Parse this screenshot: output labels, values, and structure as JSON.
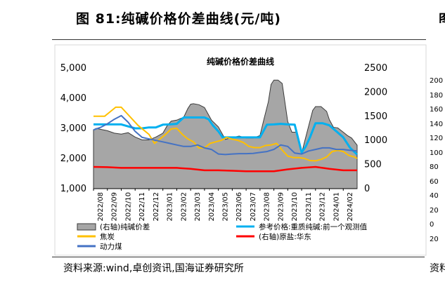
{
  "figure": {
    "title": "图 81:纯碱价格价差曲线(元/吨)",
    "source": "资料来源:wind,卓创资讯,国海证券研究所",
    "right_panel_title_fragment": "图",
    "right_panel_source_fragment": "资料",
    "right_panel_ticks": [
      "200",
      "180",
      "160",
      "140",
      "120",
      "100",
      "80",
      "60",
      "40",
      "20",
      "0",
      "20"
    ]
  },
  "chart_data": {
    "type": "line",
    "title": "纯碱价格价差曲线",
    "categories": [
      "2022/08",
      "2022/09",
      "2022/10",
      "2022/11",
      "2022/12",
      "2023/01",
      "2023/02",
      "2023/03",
      "2023/04",
      "2023/05",
      "2023/06",
      "2023/07",
      "2023/08",
      "2023/09",
      "2023/10",
      "2023/11",
      "2023/12",
      "2024/01",
      "2024/02"
    ],
    "x_span": [
      0,
      19
    ],
    "left_axis": {
      "min": 1000,
      "max": 5000,
      "ticks": [
        "1,000",
        "2,000",
        "3,000",
        "4,000",
        "5,000"
      ]
    },
    "right_axis": {
      "min": 0,
      "max": 2500,
      "ticks": [
        "0",
        "500",
        "1000",
        "1500",
        "2000",
        "2500"
      ]
    },
    "series": [
      {
        "name": "(右轴)纯碱价差",
        "type": "area",
        "axis": "right",
        "color": "#a6a6a6",
        "x": [
          0,
          0.2,
          0.5,
          1,
          1.5,
          2,
          2.5,
          3,
          3.5,
          4,
          4.5,
          5,
          5.3,
          5.6,
          6,
          6.5,
          6.8,
          7,
          7.2,
          7.6,
          8,
          8.5,
          9,
          9.5,
          10,
          10.5,
          11,
          11.5,
          12,
          12.3,
          12.6,
          12.8,
          13,
          13.3,
          13.6,
          14,
          14.3,
          14.6,
          15,
          15.2,
          15.5,
          15.8,
          16,
          16.4,
          16.8,
          17,
          17.3,
          17.6,
          18,
          18.3,
          18.6,
          19
        ],
        "y": [
          1220,
          1250,
          1230,
          1200,
          1150,
          1130,
          1160,
          1070,
          1010,
          1010,
          1070,
          1150,
          1300,
          1400,
          1420,
          1480,
          1660,
          1750,
          1760,
          1740,
          1680,
          1420,
          1280,
          1020,
          1060,
          1090,
          1050,
          1050,
          1100,
          1460,
          1800,
          2160,
          2250,
          2250,
          2180,
          1390,
          1170,
          1170,
          730,
          960,
          1290,
          1620,
          1700,
          1700,
          1600,
          1430,
          1270,
          1260,
          1170,
          1100,
          1050,
          900
        ]
      },
      {
        "name": "参考价格:重质纯碱:前一个观测值",
        "type": "line",
        "axis": "left",
        "color": "#00b0f0",
        "x": [
          0,
          0.5,
          1,
          2,
          3,
          3.5,
          4,
          4.5,
          5,
          5.5,
          6,
          6.5,
          7,
          7.5,
          8,
          8.3,
          8.6,
          9,
          9.3,
          9.6,
          10,
          10.5,
          11,
          11.5,
          12,
          12.5,
          13,
          13.5,
          14,
          14.5,
          15,
          15.3,
          15.6,
          16,
          16.5,
          17,
          17.5,
          18,
          18.5,
          19
        ],
        "y": [
          3130,
          3130,
          3130,
          3130,
          3000,
          3000,
          3030,
          3030,
          3120,
          3130,
          3150,
          3360,
          3360,
          3360,
          3360,
          3300,
          3100,
          2900,
          2700,
          2700,
          2700,
          2700,
          2700,
          2700,
          2700,
          3120,
          3130,
          3150,
          3130,
          3120,
          2200,
          2400,
          2700,
          3170,
          3170,
          3100,
          2900,
          2700,
          2350,
          2130
        ]
      },
      {
        "name": "焦炭",
        "type": "line",
        "axis": "left",
        "color": "#ffc000",
        "x": [
          0,
          0.4,
          0.8,
          1.2,
          1.6,
          2,
          2.4,
          2.8,
          3.2,
          3.6,
          4,
          4.4,
          4.8,
          5.2,
          5.6,
          6,
          6.4,
          6.8,
          7.2,
          7.6,
          8,
          8.4,
          8.8,
          9.2,
          9.6,
          10,
          10.4,
          10.8,
          11.2,
          11.6,
          12,
          12.4,
          12.8,
          13.2,
          13.6,
          14,
          14.4,
          14.8,
          15.2,
          15.6,
          16,
          16.4,
          16.8,
          17.2,
          17.6,
          18,
          18.4,
          18.8,
          19
        ],
        "y": [
          3400,
          3400,
          3400,
          3550,
          3700,
          3700,
          3500,
          3300,
          3100,
          2950,
          2800,
          2500,
          2650,
          2800,
          2980,
          3000,
          2800,
          2650,
          2550,
          2350,
          2350,
          2500,
          2550,
          2600,
          2700,
          2640,
          2600,
          2530,
          2400,
          2360,
          2360,
          2430,
          2450,
          2500,
          2280,
          2080,
          2030,
          2030,
          2000,
          1930,
          1920,
          1970,
          2050,
          2230,
          2270,
          2230,
          2100,
          2050,
          2000
        ]
      },
      {
        "name": "(右轴)原盐:华东",
        "type": "line",
        "axis": "right",
        "color": "#ff0000",
        "x": [
          0,
          1,
          2,
          3,
          4,
          5,
          6,
          7,
          8,
          9,
          10,
          11,
          12,
          13,
          14,
          15,
          16,
          17,
          18,
          19
        ],
        "y": [
          450,
          445,
          430,
          430,
          430,
          430,
          430,
          410,
          380,
          380,
          370,
          360,
          360,
          360,
          400,
          430,
          450,
          410,
          380,
          380
        ]
      },
      {
        "name": "动力煤",
        "type": "line",
        "axis": "left",
        "color": "#4472c4",
        "x": [
          0,
          0.5,
          1,
          1.5,
          2,
          2.5,
          3,
          3.5,
          4,
          4.5,
          5,
          5.5,
          6,
          6.5,
          7,
          7.5,
          8,
          8.5,
          9,
          9.5,
          10,
          10.5,
          11,
          11.5,
          12,
          12.5,
          13,
          13.5,
          14,
          14.5,
          15,
          15.5,
          16,
          16.5,
          17,
          17.5,
          18,
          18.5,
          19
        ],
        "y": [
          2950,
          3030,
          3150,
          3300,
          3420,
          3200,
          2900,
          2700,
          2650,
          2600,
          2550,
          2500,
          2450,
          2400,
          2400,
          2450,
          2350,
          2300,
          2150,
          2130,
          2150,
          2160,
          2160,
          2170,
          2200,
          2230,
          2300,
          2450,
          2400,
          2180,
          2150,
          2250,
          2300,
          2350,
          2350,
          2300,
          2300,
          2270,
          2250
        ]
      }
    ],
    "legend": {
      "position": "bottom",
      "entries": [
        {
          "label": "(右轴)纯碱价差",
          "symbol": "box",
          "color": "#a6a6a6"
        },
        {
          "label": "参考价格:重质纯碱:前一个观测值",
          "symbol": "line",
          "color": "#00b0f0"
        },
        {
          "label": "焦炭",
          "symbol": "line",
          "color": "#ffc000"
        },
        {
          "label": "(右轴)原盐:华东",
          "symbol": "line",
          "color": "#ff0000"
        },
        {
          "label": "动力煤",
          "symbol": "line",
          "color": "#4472c4"
        }
      ]
    },
    "grid": false
  }
}
